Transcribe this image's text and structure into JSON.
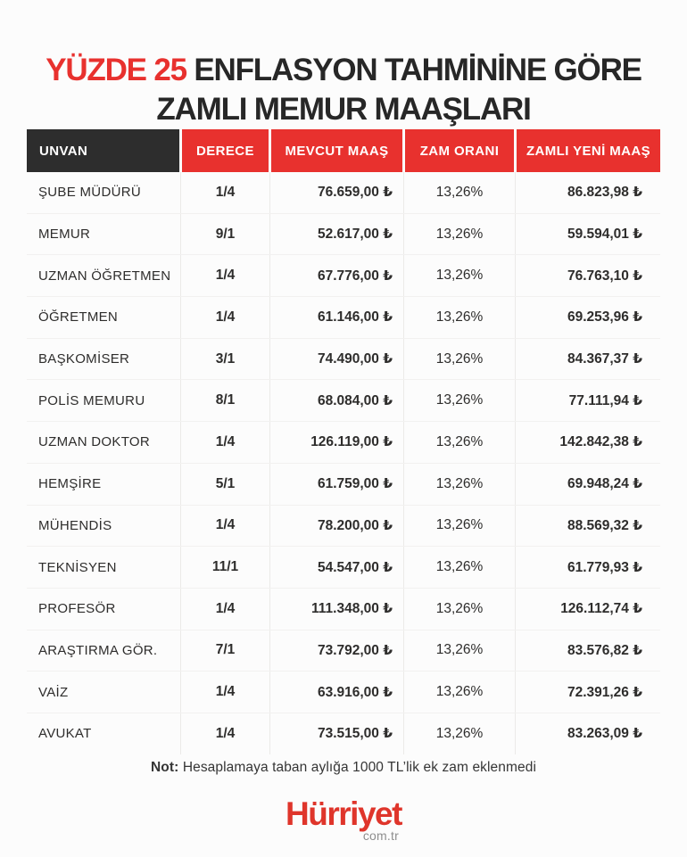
{
  "title": {
    "highlight": "YÜZDE 25",
    "line1_rest": "ENFLASYON TAHMİNİNE GÖRE",
    "line2": "ZAMLI MEMUR MAAŞLARI"
  },
  "note": {
    "label": "Not:",
    "text": "Hesaplamaya taban aylığa 1000 TL’lik ek zam eklenmedi"
  },
  "logo": {
    "wordmark": "Hürriyet",
    "domain": "com.tr"
  },
  "colors": {
    "accent_red": "#e8312e",
    "header_dark": "#2d2d2d",
    "text_dark": "#2b2b2b",
    "logo_red": "#df352b",
    "domain_gray": "#8e8e8e",
    "background": "#fcfcfc"
  },
  "chart_data": {
    "type": "table",
    "title": "YÜZDE 25 ENFLASYON TAHMİNİNE GÖRE ZAMLI MEMUR MAAŞLARI",
    "columns": [
      "UNVAN",
      "DERECE",
      "MEVCUT MAAŞ",
      "ZAM ORANI",
      "ZAMLI YENİ MAAŞ"
    ],
    "rows": [
      [
        "ŞUBE MÜDÜRÜ",
        "1/4",
        "76.659,00 ₺",
        "13,26%",
        "86.823,98 ₺"
      ],
      [
        "MEMUR",
        "9/1",
        "52.617,00 ₺",
        "13,26%",
        "59.594,01 ₺"
      ],
      [
        "UZMAN ÖĞRETMEN",
        "1/4",
        "67.776,00 ₺",
        "13,26%",
        "76.763,10 ₺"
      ],
      [
        "ÖĞRETMEN",
        "1/4",
        "61.146,00 ₺",
        "13,26%",
        "69.253,96 ₺"
      ],
      [
        "BAŞKOMİSER",
        "3/1",
        "74.490,00 ₺",
        "13,26%",
        "84.367,37 ₺"
      ],
      [
        "POLİS MEMURU",
        "8/1",
        "68.084,00 ₺",
        "13,26%",
        "77.111,94 ₺"
      ],
      [
        "UZMAN DOKTOR",
        "1/4",
        "126.119,00 ₺",
        "13,26%",
        "142.842,38 ₺"
      ],
      [
        "HEMŞİRE",
        "5/1",
        "61.759,00 ₺",
        "13,26%",
        "69.948,24 ₺"
      ],
      [
        "MÜHENDİS",
        "1/4",
        "78.200,00 ₺",
        "13,26%",
        "88.569,32 ₺"
      ],
      [
        "TEKNİSYEN",
        "11/1",
        "54.547,00 ₺",
        "13,26%",
        "61.779,93 ₺"
      ],
      [
        "PROFESÖR",
        "1/4",
        "111.348,00 ₺",
        "13,26%",
        "126.112,74 ₺"
      ],
      [
        "ARAŞTIRMA GÖR.",
        "7/1",
        "73.792,00 ₺",
        "13,26%",
        "83.576,82 ₺"
      ],
      [
        "VAİZ",
        "1/4",
        "63.916,00 ₺",
        "13,26%",
        "72.391,26 ₺"
      ],
      [
        "AVUKAT",
        "1/4",
        "73.515,00 ₺",
        "13,26%",
        "83.263,09 ₺"
      ]
    ],
    "note": "Not: Hesaplamaya taban aylığa 1000 TL’lik ek zam eklenmedi",
    "source": "Hürriyet com.tr"
  }
}
